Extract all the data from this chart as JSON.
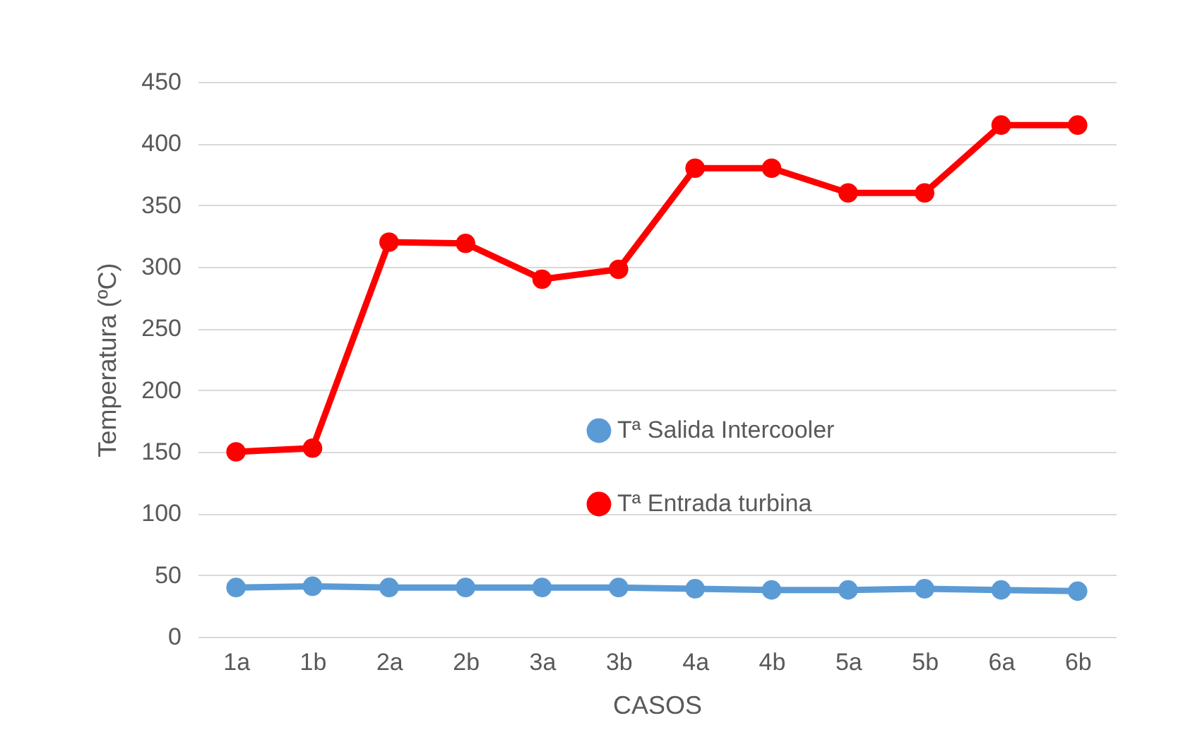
{
  "chart_data": {
    "type": "line",
    "xlabel": "CASOS",
    "ylabel": "Temperatura (ºC)",
    "categories": [
      "1a",
      "1b",
      "2a",
      "2b",
      "3a",
      "3b",
      "4a",
      "4b",
      "5a",
      "5b",
      "6a",
      "6b"
    ],
    "series": [
      {
        "name": "Tª Salida Intercooler",
        "color": "#5b9bd5",
        "values": [
          40,
          41,
          40,
          40,
          40,
          40,
          39,
          38,
          38,
          39,
          38,
          37
        ]
      },
      {
        "name": "Tª Entrada turbina",
        "color": "#ff0000",
        "values": [
          150,
          153,
          320,
          319,
          290,
          298,
          380,
          380,
          360,
          360,
          415,
          415
        ]
      }
    ],
    "ylim": [
      0,
      450
    ],
    "yticks": [
      0,
      50,
      100,
      150,
      200,
      250,
      300,
      350,
      400,
      450
    ],
    "grid": "y",
    "legend": "center",
    "marker": "circle",
    "line_style": "solid"
  }
}
